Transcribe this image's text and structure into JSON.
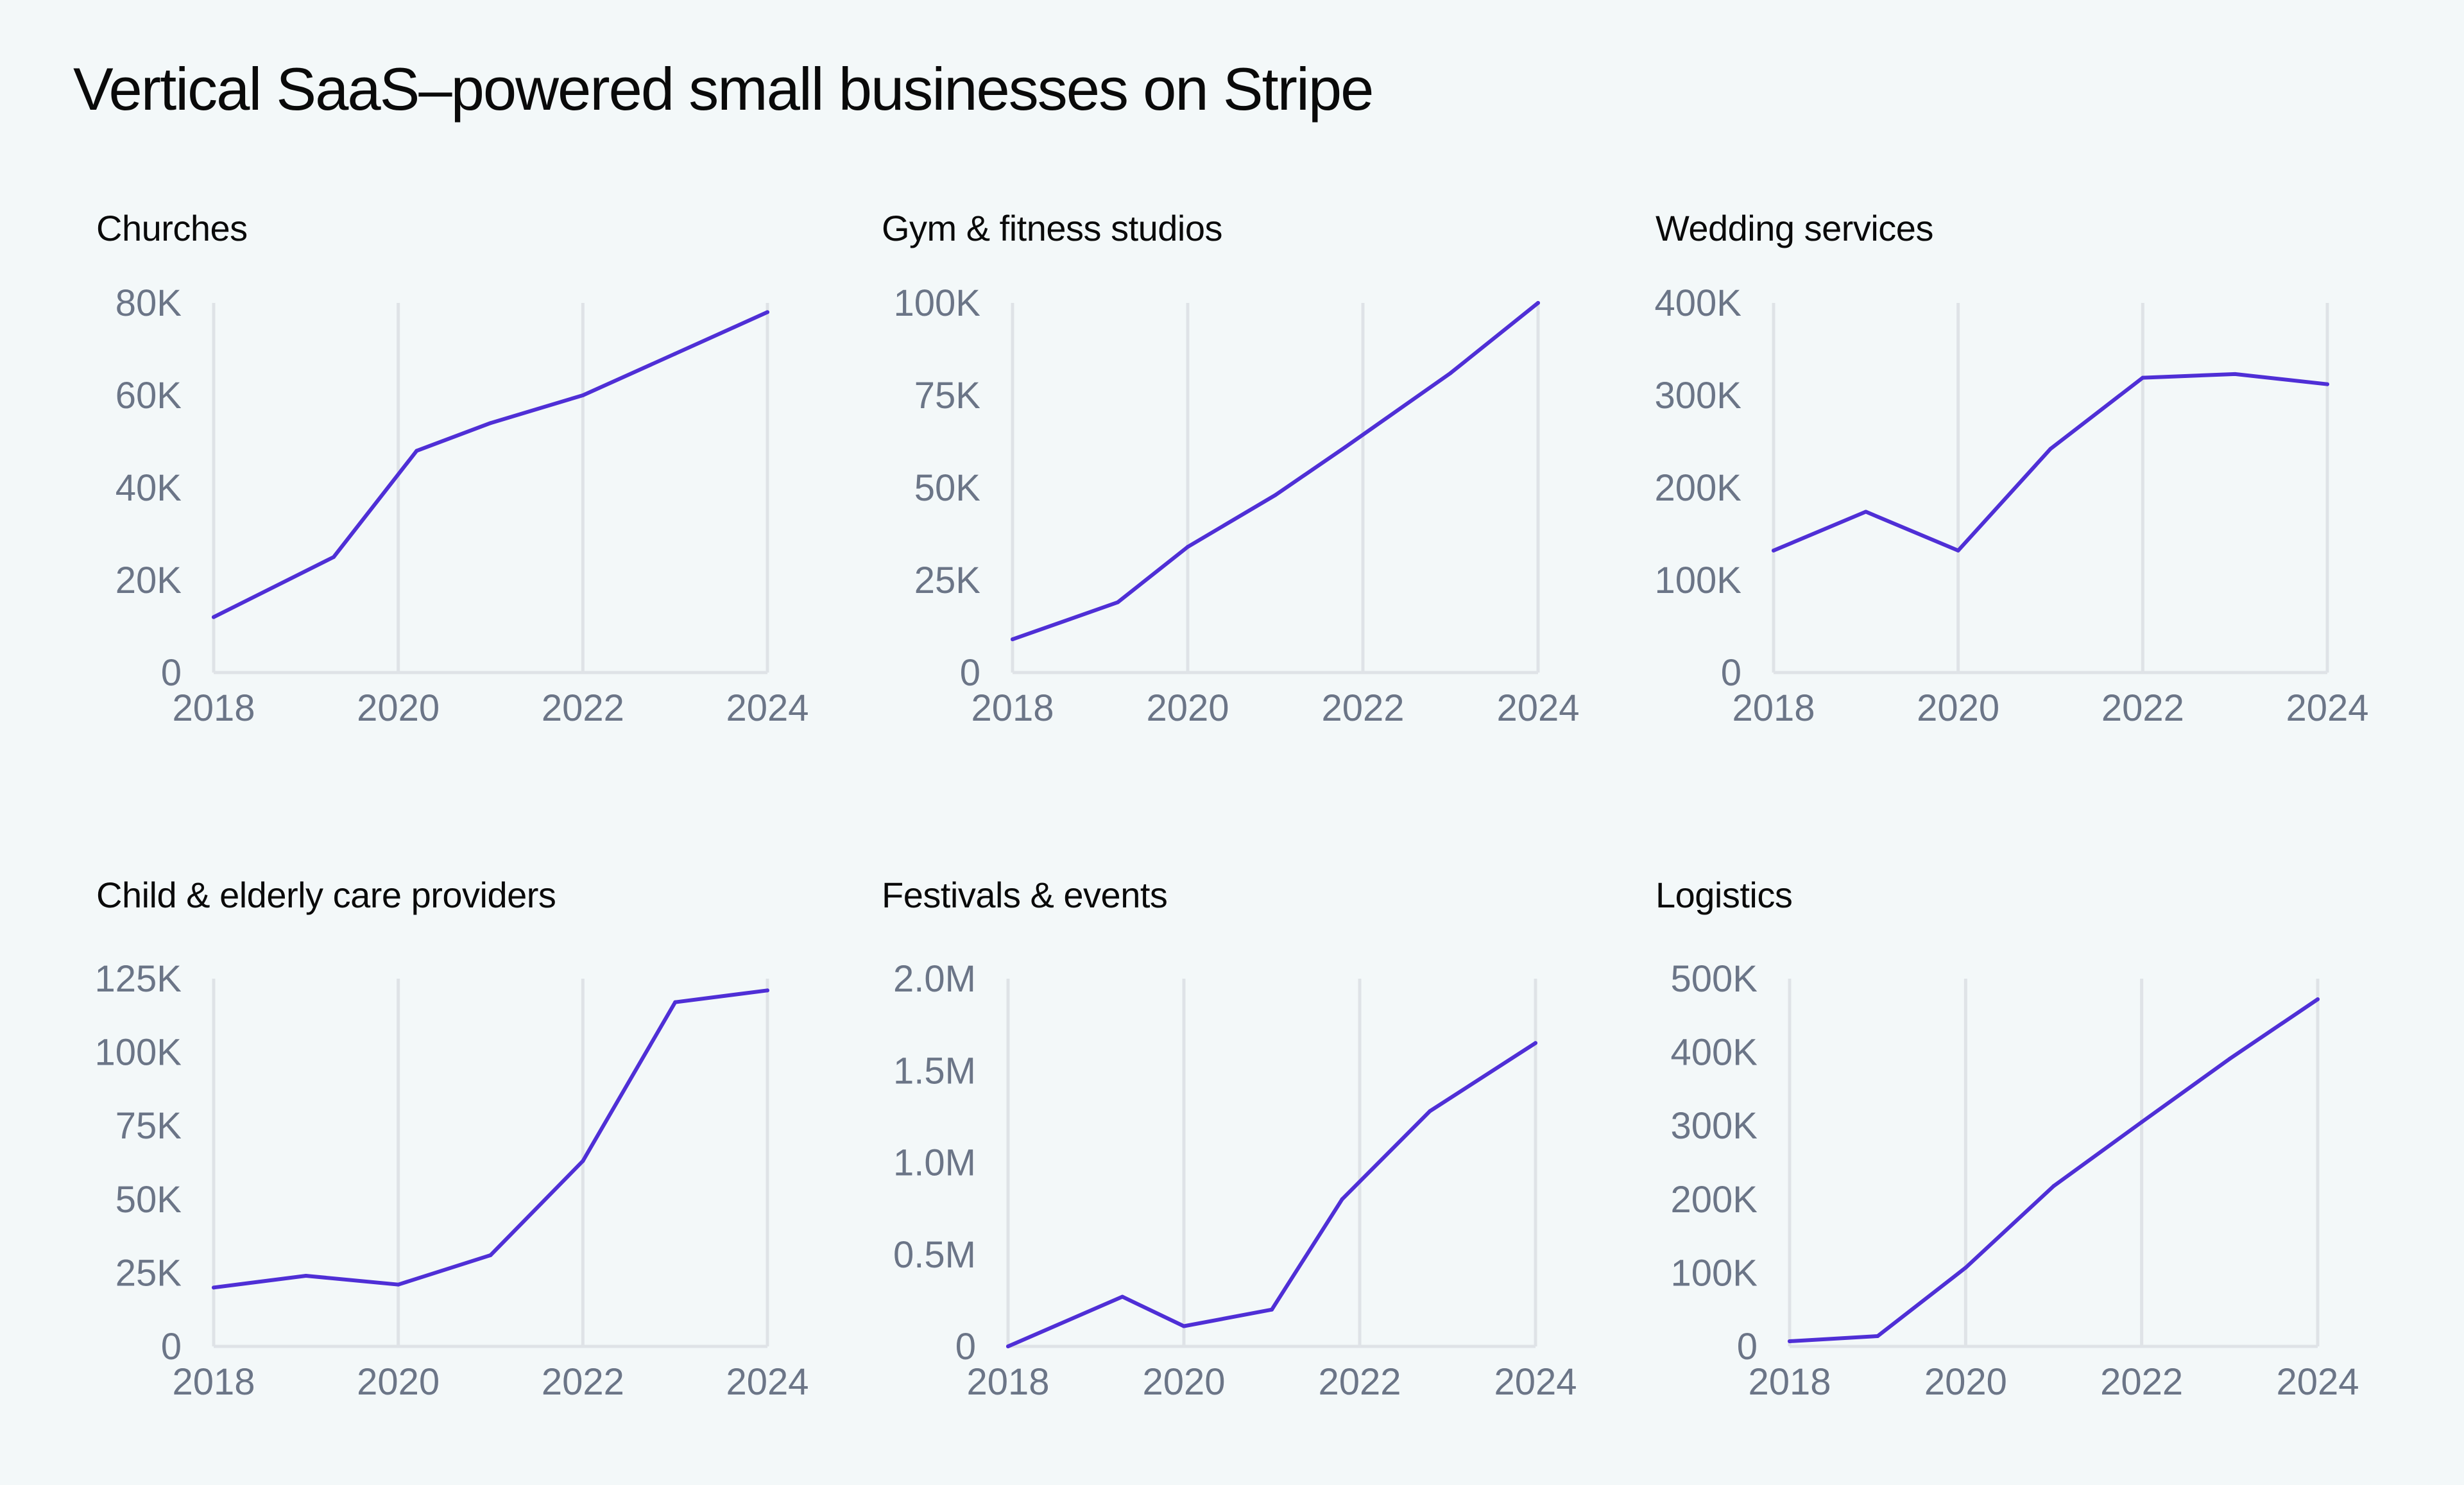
{
  "title": "Vertical SaaS–powered small businesses on Stripe",
  "colors": {
    "line": "#4f2fd6",
    "grid": "#dfe3e7",
    "tick": "#6b7587",
    "background": "#f3f8f9"
  },
  "chart_data": [
    {
      "type": "line",
      "title": "Churches",
      "x": [
        2018,
        2019.3,
        2020.2,
        2021,
        2022,
        2023,
        2024
      ],
      "y": [
        12000,
        25000,
        48000,
        54000,
        60000,
        69000,
        78000
      ],
      "ylim": [
        0,
        80000
      ],
      "y_ticks": [
        0,
        20000,
        40000,
        60000,
        80000
      ],
      "y_tick_labels": [
        "0",
        "20K",
        "40K",
        "60K",
        "80K"
      ],
      "x_ticks": [
        2018,
        2020,
        2022,
        2024
      ],
      "x_tick_labels": [
        "2018",
        "2020",
        "2022",
        "2024"
      ],
      "grid": "vertical"
    },
    {
      "type": "line",
      "title": "Gym & fitness studios",
      "x": [
        2018,
        2019.2,
        2020,
        2021,
        2021.8,
        2023,
        2024
      ],
      "y": [
        9000,
        19000,
        34000,
        48000,
        61000,
        81000,
        100000
      ],
      "ylim": [
        0,
        100000
      ],
      "y_ticks": [
        0,
        25000,
        50000,
        75000,
        100000
      ],
      "y_tick_labels": [
        "0",
        "25K",
        "50K",
        "75K",
        "100K"
      ],
      "x_ticks": [
        2018,
        2020,
        2022,
        2024
      ],
      "x_tick_labels": [
        "2018",
        "2020",
        "2022",
        "2024"
      ],
      "grid": "vertical"
    },
    {
      "type": "line",
      "title": "Wedding services",
      "x": [
        2018,
        2019,
        2020,
        2021,
        2022,
        2023,
        2024
      ],
      "y": [
        132000,
        174000,
        132000,
        242000,
        319000,
        323000,
        312000
      ],
      "ylim": [
        0,
        400000
      ],
      "y_ticks": [
        0,
        100000,
        200000,
        300000,
        400000
      ],
      "y_tick_labels": [
        "0",
        "100K",
        "200K",
        "300K",
        "400K"
      ],
      "x_ticks": [
        2018,
        2020,
        2022,
        2024
      ],
      "x_tick_labels": [
        "2018",
        "2020",
        "2022",
        "2024"
      ],
      "grid": "vertical"
    },
    {
      "type": "line",
      "title": "Child & elderly care providers",
      "x": [
        2018,
        2019,
        2020,
        2021,
        2022,
        2023,
        2024
      ],
      "y": [
        20000,
        24000,
        21000,
        31000,
        63000,
        117000,
        121000
      ],
      "ylim": [
        0,
        125000
      ],
      "y_ticks": [
        0,
        25000,
        50000,
        75000,
        100000,
        125000
      ],
      "y_tick_labels": [
        "0",
        "25K",
        "50K",
        "75K",
        "100K",
        "125K"
      ],
      "x_ticks": [
        2018,
        2020,
        2022,
        2024
      ],
      "x_tick_labels": [
        "2018",
        "2020",
        "2022",
        "2024"
      ],
      "grid": "vertical"
    },
    {
      "type": "line",
      "title": "Festivals & events",
      "x": [
        2018,
        2019.3,
        2020,
        2021,
        2021.8,
        2022.8,
        2024
      ],
      "y": [
        0,
        270000,
        110000,
        200000,
        800000,
        1280000,
        1650000
      ],
      "ylim": [
        0,
        2000000
      ],
      "y_ticks": [
        0,
        500000,
        1000000,
        1500000,
        2000000
      ],
      "y_tick_labels": [
        "0",
        "0.5M",
        "1.0M",
        "1.5M",
        "2.0M"
      ],
      "x_ticks": [
        2018,
        2020,
        2022,
        2024
      ],
      "x_tick_labels": [
        "2018",
        "2020",
        "2022",
        "2024"
      ],
      "grid": "vertical"
    },
    {
      "type": "line",
      "title": "Logistics",
      "x": [
        2018,
        2019,
        2020,
        2021,
        2022,
        2023,
        2024
      ],
      "y": [
        7000,
        14000,
        107000,
        218000,
        305000,
        391000,
        472000
      ],
      "ylim": [
        0,
        500000
      ],
      "y_ticks": [
        0,
        100000,
        200000,
        300000,
        400000,
        500000
      ],
      "y_tick_labels": [
        "0",
        "100K",
        "200K",
        "300K",
        "400K",
        "500K"
      ],
      "x_ticks": [
        2018,
        2020,
        2022,
        2024
      ],
      "x_tick_labels": [
        "2018",
        "2020",
        "2022",
        "2024"
      ],
      "grid": "vertical"
    }
  ]
}
